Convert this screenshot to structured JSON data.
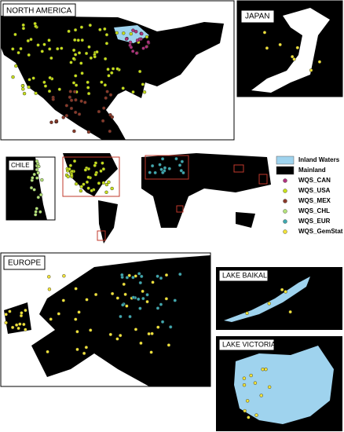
{
  "panels": [
    {
      "label": "NORTH AMERICA"
    },
    {
      "label": "JAPAN"
    },
    {
      "label": "CHILE"
    },
    {
      "label": "EUROPE"
    },
    {
      "label": "LAKE BAIKAL"
    },
    {
      "label": "LAKE VICTORIA"
    }
  ],
  "legend": [
    {
      "label": "Inland Waters",
      "color": "#9fd3ee",
      "shape": "box"
    },
    {
      "label": "Mainland",
      "color": "#000000",
      "shape": "box"
    },
    {
      "label": "WQS_CAN",
      "color": "#b0327e",
      "shape": "dot"
    },
    {
      "label": "WQS_USA",
      "color": "#c8e01c",
      "shape": "dot"
    },
    {
      "label": "WQS_MEX",
      "color": "#8a3a2a",
      "shape": "dot"
    },
    {
      "label": "WQS_CHL",
      "color": "#b5e27a",
      "shape": "dot"
    },
    {
      "label": "WQS_EUR",
      "color": "#3fa9b0",
      "shape": "dot"
    },
    {
      "label": "WQS_GemStat",
      "color": "#f2e33a",
      "shape": "dot"
    }
  ]
}
